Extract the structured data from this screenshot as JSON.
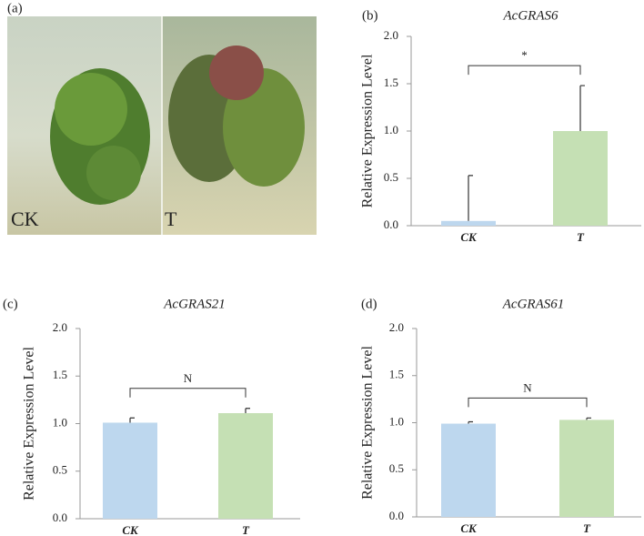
{
  "photo": {
    "panel_label": "(a)",
    "labels": [
      "CK",
      "T"
    ]
  },
  "chart_data": [
    {
      "type": "bar",
      "panel_label": "(b)",
      "title": "AcGRAS6",
      "y_label": "Relative  Expression Level",
      "categories": [
        "CK",
        "T"
      ],
      "values": [
        0.05,
        1.0
      ],
      "errors": [
        0.48,
        0.48
      ],
      "colors": [
        "#bdd7ee",
        "#c5e0b4"
      ],
      "significance": "*",
      "ylim": [
        0,
        2
      ],
      "yticks": [
        {
          "value": 0,
          "label": "0.0"
        },
        {
          "value": 0.5,
          "label": "0.5"
        },
        {
          "value": 1,
          "label": "1.0"
        },
        {
          "value": 1.5,
          "label": "1.5"
        },
        {
          "value": 2,
          "label": "2.0"
        }
      ]
    },
    {
      "type": "bar",
      "panel_label": "(c)",
      "title": "AcGRAS21",
      "y_label": "Relative  Expression Level",
      "categories": [
        "CK",
        "T"
      ],
      "values": [
        1.01,
        1.11
      ],
      "errors": [
        0.05,
        0.05
      ],
      "colors": [
        "#bdd7ee",
        "#c5e0b4"
      ],
      "significance": "N",
      "ylim": [
        0,
        2
      ],
      "yticks": [
        {
          "value": 0,
          "label": "0.0"
        },
        {
          "value": 0.5,
          "label": "0.5"
        },
        {
          "value": 1,
          "label": "1.0"
        },
        {
          "value": 1.5,
          "label": "1.5"
        },
        {
          "value": 2,
          "label": "2.0"
        }
      ]
    },
    {
      "type": "bar",
      "panel_label": "(d)",
      "title": "AcGRAS61",
      "y_label": "Relative  Expression Level",
      "categories": [
        "CK",
        "T"
      ],
      "values": [
        0.99,
        1.03
      ],
      "errors": [
        0.02,
        0.02
      ],
      "colors": [
        "#bdd7ee",
        "#c5e0b4"
      ],
      "significance": "N",
      "ylim": [
        0,
        2
      ],
      "yticks": [
        {
          "value": 0,
          "label": "0.0"
        },
        {
          "value": 0.5,
          "label": "0.5"
        },
        {
          "value": 1,
          "label": "1.0"
        },
        {
          "value": 1.5,
          "label": "1.5"
        },
        {
          "value": 2,
          "label": "2.0"
        }
      ]
    }
  ]
}
